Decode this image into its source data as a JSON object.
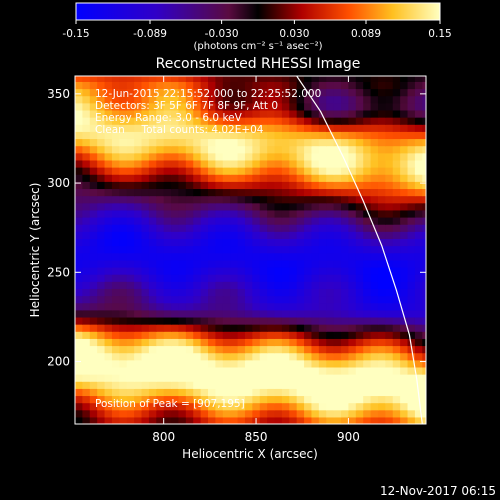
{
  "colorbar": {
    "ticks": [
      "-0.15",
      "-0.089",
      "-0.030",
      "0.030",
      "0.089",
      "0.15"
    ],
    "tick_values": [
      -0.15,
      -0.089,
      -0.03,
      0.03,
      0.089,
      0.15
    ],
    "range": [
      -0.15,
      0.15
    ],
    "units": "(photons cm⁻² s⁻¹ asec⁻²)"
  },
  "chart_data": {
    "type": "heatmap",
    "title": "Reconstructed RHESSI Image",
    "xlabel": "Heliocentric X (arcsec)",
    "ylabel": "Heliocentric Y (arcsec)",
    "xlim": [
      752,
      942
    ],
    "ylim": [
      165,
      360
    ],
    "xticks": [
      800,
      850,
      900
    ],
    "yticks": [
      200,
      250,
      300,
      350
    ],
    "annotations": [
      "12-Jun-2015 22:15:52.000 to 22:25:52.000",
      "Detectors: 3F 5F 6F 7F 8F 9F, Att 0",
      "Energy Range: 3.0 - 6.0 keV",
      "Clean     Total counts: 4.02E+04",
      "Position of Peak = [907,195]"
    ],
    "peak": [
      907,
      195
    ],
    "limb_curve": [
      [
        872,
        360
      ],
      [
        885,
        340
      ],
      [
        897,
        315
      ],
      [
        908,
        290
      ],
      [
        918,
        265
      ],
      [
        926,
        240
      ],
      [
        933,
        215
      ],
      [
        937,
        190
      ],
      [
        940,
        165
      ]
    ],
    "features": [
      {
        "label": "top bright band",
        "y_center": 318,
        "value": 0.12
      },
      {
        "label": "upper-left bright patch",
        "y_center": 340,
        "value": 0.13
      },
      {
        "label": "middle dark band",
        "y_center": 255,
        "value": -0.12
      },
      {
        "label": "bottom bright band",
        "y_center": 195,
        "value": 0.14
      },
      {
        "label": "lower dark band",
        "y_center": 225,
        "value": -0.02
      }
    ]
  },
  "footer": {
    "timestamp": "12-Nov-2017 06:15"
  }
}
